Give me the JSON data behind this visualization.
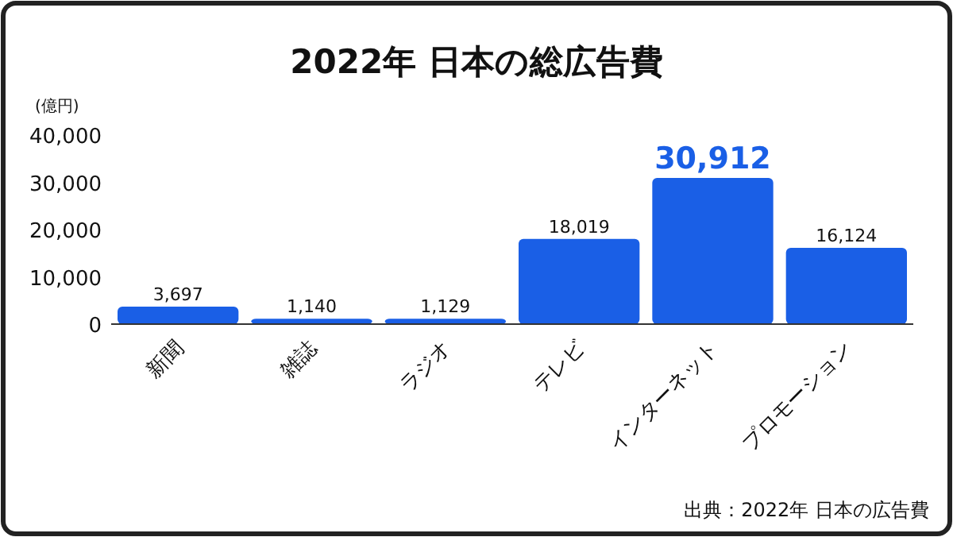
{
  "chart_data": {
    "type": "bar",
    "title": "2022年  日本の総広告費",
    "ylabel": "(億円)",
    "categories": [
      "新聞",
      "雑誌",
      "ラジオ",
      "テレビ",
      "インターネット",
      "プロモーション"
    ],
    "values": [
      3697,
      1140,
      1129,
      18019,
      30912,
      16124
    ],
    "value_labels": [
      "3,697",
      "1,140",
      "1,129",
      "18,019",
      "30,912",
      "16,124"
    ],
    "color": "#1a5fe6",
    "ylim": [
      0,
      40000
    ],
    "yticks": [
      {
        "value": 0,
        "label": "0"
      },
      {
        "value": 10000,
        "label": "10,000"
      },
      {
        "value": 20000,
        "label": "20,000"
      },
      {
        "value": 30000,
        "label": "30,000"
      },
      {
        "value": 40000,
        "label": "40,000"
      }
    ],
    "grid": false,
    "annotations": [
      "出典：2022年 日本の広告費"
    ]
  }
}
